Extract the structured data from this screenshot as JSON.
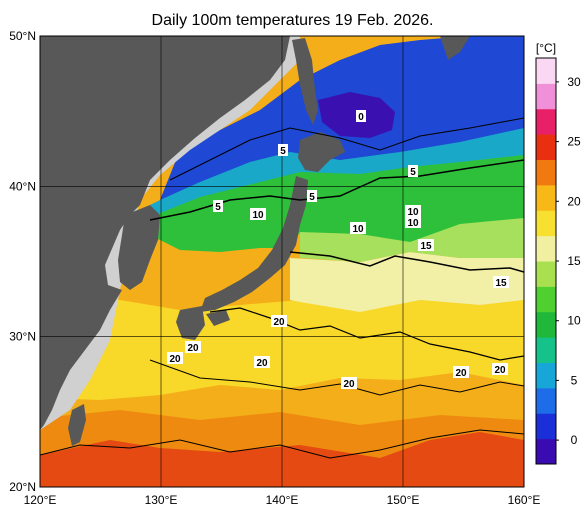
{
  "title": "Daily 100m temperatures 19 Feb. 2026.",
  "map": {
    "lon_range": [
      120,
      160
    ],
    "lat_range": [
      20,
      50
    ],
    "lon_ticks": [
      "120°E",
      "130°E",
      "140°E",
      "150°E",
      "160°E"
    ],
    "lat_ticks": [
      "50°N",
      "40°N",
      "30°N",
      "20°N"
    ],
    "land_color": "#585858",
    "outside_color": "#d0d0d0"
  },
  "colorbar": {
    "unit": "[°C]",
    "min": -2,
    "max": 32,
    "ticks": [
      "30",
      "25",
      "20",
      "15",
      "10",
      "5",
      "0"
    ],
    "colors": [
      "#3a0bb0",
      "#1a2fd8",
      "#1e6de8",
      "#17a6d8",
      "#14c28a",
      "#1fb83a",
      "#4fd030",
      "#a8e050",
      "#f0f0a0",
      "#f8e030",
      "#f8b818",
      "#f07a10",
      "#e83010",
      "#e82068",
      "#f090d8",
      "#fad8f4"
    ]
  },
  "contour_labels": [
    "0",
    "5",
    "5",
    "5",
    "5",
    "10",
    "10",
    "10",
    "10",
    "15",
    "15",
    "20",
    "20",
    "20",
    "20",
    "20",
    "20",
    "20"
  ]
}
